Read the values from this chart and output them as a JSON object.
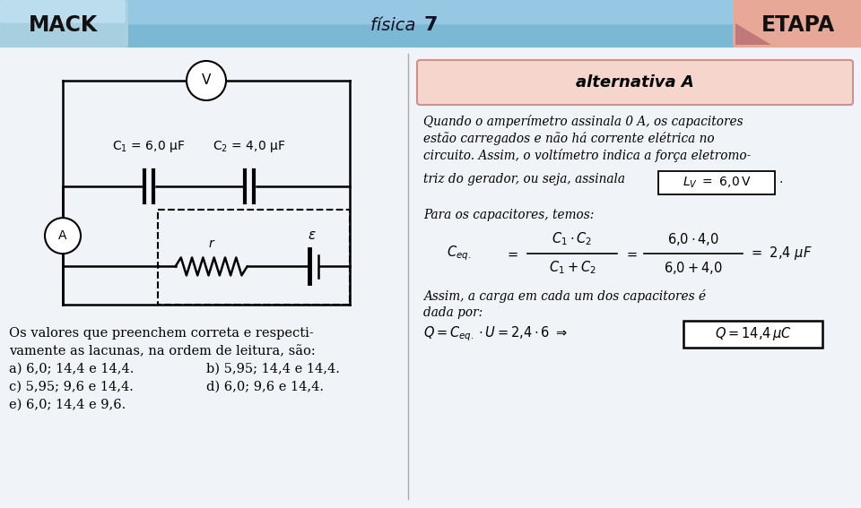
{
  "bg_color": "#f0f4f8",
  "header_color": "#7ab8d4",
  "header_highlight": "#aed6f1",
  "mack_bg": "#a8cfe0",
  "etapa_bg": "#e8a898",
  "etapa_fold_color": "#c07878",
  "mack_text": "MACK",
  "etapa_text": "ETAPA",
  "fisica_normal": "física ",
  "fisica_bold": "7",
  "alt_title": "alternativa A",
  "alt_box_color": "#f5d5cc",
  "alt_box_border": "#d09090",
  "divider_color": "#aaaaaa",
  "circuit_color": "black",
  "text_color": "black",
  "p1_line1": "Quando o amperímetro assinala 0 A, os capacitores",
  "p1_line2": "estão carregados e não há corrente elétrica no",
  "p1_line3": "circuito. Assim, o voltímetro indica a força eletromo-",
  "p2_line": "triz do gerador, ou seja, assinala",
  "lv_formula": "L_V  =  6,0 V",
  "p3": "Para os capacitores, temos:",
  "assim": "Assim, a carga em cada um dos capacitores é",
  "dada_por": "dada por:",
  "q_formula": "Q = C_{eq.} \\cdot U = 2{,}4 \\cdot 6",
  "q_boxed": "Q = 14{,}4\\,\\mu C",
  "left_line1": "Os valores que preenchem correta e respecti-",
  "left_line2": "vamente as lacunas, na ordem de leitura, são:",
  "left_line3a": "a) 6,0; 14,4 e 14,4.",
  "left_line3b": "b) 5,95; 14,4 e 14,4.",
  "left_line4a": "c) 5,95; 9,6 e 14,4.",
  "left_line4b": "d) 6,0; 9,6 e 14,4.",
  "left_line5": "e) 6,0; 14,4 e 9,6.",
  "c1_label": "C$_1$ = 6,0 μF",
  "c2_label": "C$_2$ = 4,0 μF"
}
